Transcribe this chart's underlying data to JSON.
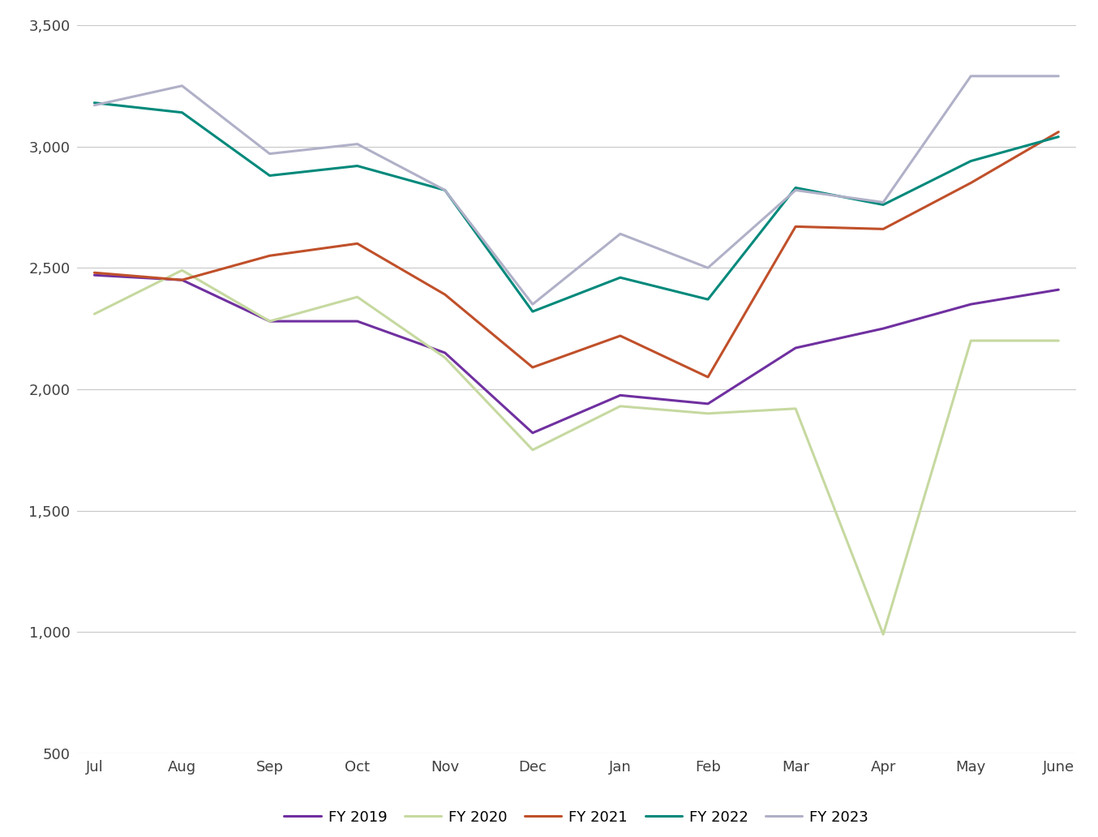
{
  "months": [
    "Jul",
    "Aug",
    "Sep",
    "Oct",
    "Nov",
    "Dec",
    "Jan",
    "Feb",
    "Mar",
    "Apr",
    "May",
    "June"
  ],
  "series": {
    "FY 2019": [
      2470,
      2450,
      2280,
      2280,
      2150,
      1820,
      1975,
      1940,
      2170,
      2250,
      2350,
      2410
    ],
    "FY 2020": [
      2310,
      2490,
      2280,
      2380,
      2130,
      1750,
      1930,
      1900,
      1920,
      990,
      2200,
      2200
    ],
    "FY 2021": [
      2480,
      2450,
      2550,
      2600,
      2390,
      2090,
      2220,
      2050,
      2670,
      2660,
      2850,
      3060
    ],
    "FY 2022": [
      3180,
      3140,
      2880,
      2920,
      2820,
      2320,
      2460,
      2370,
      2830,
      2760,
      2940,
      3040
    ],
    "FY 2023": [
      3170,
      3250,
      2970,
      3010,
      2820,
      2350,
      2640,
      2500,
      2820,
      2770,
      3290,
      3290
    ]
  },
  "colors": {
    "FY 2019": "#7030a0",
    "FY 2020": "#c6d9a0",
    "FY 2021": "#c0502a",
    "FY 2022": "#00897b",
    "FY 2023": "#b0b0c8"
  },
  "ylim": [
    500,
    3500
  ],
  "yticks": [
    500,
    1000,
    1500,
    2000,
    2500,
    3000,
    3500
  ],
  "background_color": "#ffffff",
  "grid_color": "#c8c8c8",
  "linewidth": 2.2,
  "legend_order": [
    "FY 2019",
    "FY 2020",
    "FY 2021",
    "FY 2022",
    "FY 2023"
  ],
  "figsize": [
    13.54,
    10.32
  ],
  "dpi": 100
}
